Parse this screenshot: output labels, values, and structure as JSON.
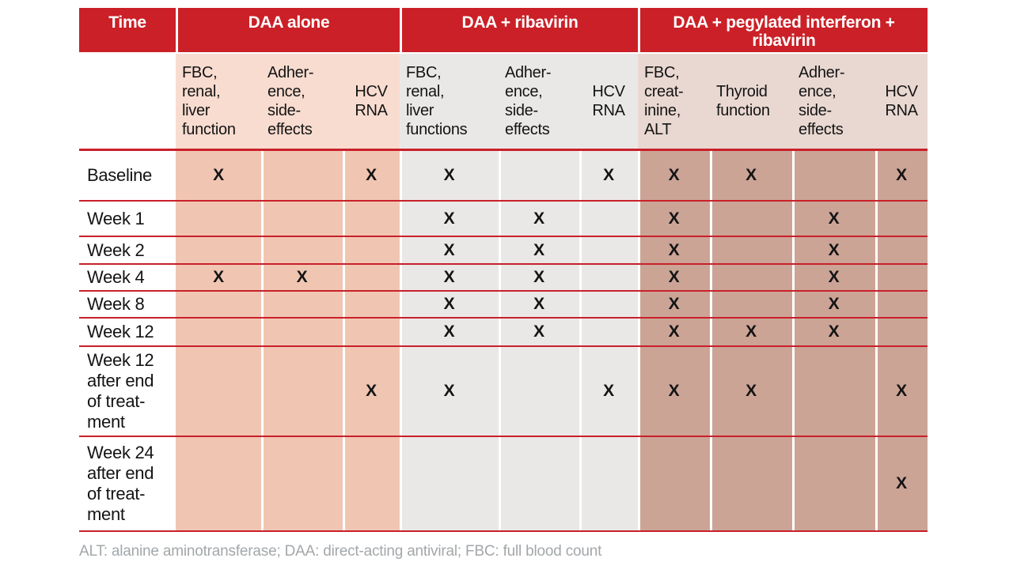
{
  "colors": {
    "header_red": "#cb2027",
    "line_red": "#c9202a",
    "pink_sub": "#f8dcd0",
    "pink_body": "#f0c6b2",
    "gray_col": "#e9e8e7",
    "rose_sub": "#e9d8d1",
    "rose_body": "#cba496",
    "footnote_gray": "#a3a7aa"
  },
  "table": {
    "header": {
      "time": "Time",
      "groups": [
        {
          "label": "DAA alone"
        },
        {
          "label": "DAA + ribavirin"
        },
        {
          "label": "DAA + pegylated interferon +\nribavirin"
        }
      ]
    },
    "subheader": {
      "cols": [
        "FBC,\nrenal,\nliver\nfunction",
        "Adher-\nence,\nside-\neffects",
        "HCV\nRNA",
        "FBC,\nrenal,\nliver\nfunctions",
        "Adher-\nence,\nside-\neffects",
        "HCV\nRNA",
        "FBC,\ncreat-\ninine,\nALT",
        "Thyroid\nfunction",
        "Adher-\nence,\nside-\neffects",
        "HCV\nRNA"
      ]
    },
    "rows": [
      {
        "label": "Baseline",
        "cells": [
          "X",
          "",
          "X",
          "X",
          "",
          "X",
          "X",
          "X",
          "",
          "X"
        ]
      },
      {
        "label": "Week 1",
        "cells": [
          "",
          "",
          "",
          "X",
          "X",
          "",
          "X",
          "",
          "X",
          ""
        ]
      },
      {
        "label": "Week 2",
        "cells": [
          "",
          "",
          "",
          "X",
          "X",
          "",
          "X",
          "",
          "X",
          ""
        ]
      },
      {
        "label": "Week 4",
        "cells": [
          "X",
          "X",
          "",
          "X",
          "X",
          "",
          "X",
          "",
          "X",
          ""
        ]
      },
      {
        "label": "Week 8",
        "cells": [
          "",
          "",
          "",
          "X",
          "X",
          "",
          "X",
          "",
          "X",
          ""
        ]
      },
      {
        "label": "Week 12",
        "cells": [
          "",
          "",
          "",
          "X",
          "X",
          "",
          "X",
          "X",
          "X",
          ""
        ]
      },
      {
        "label": "Week 12\nafter end\nof treat-\nment",
        "cells": [
          "",
          "",
          "X",
          "X",
          "",
          "X",
          "X",
          "X",
          "",
          "X"
        ]
      },
      {
        "label": "Week 24\nafter end\nof treat-\nment",
        "cells": [
          "",
          "",
          "",
          "",
          "",
          "",
          "",
          "",
          "",
          "X"
        ]
      }
    ]
  },
  "footnote": "ALT: alanine aminotransferase; DAA: direct-acting antiviral; FBC: full blood count"
}
